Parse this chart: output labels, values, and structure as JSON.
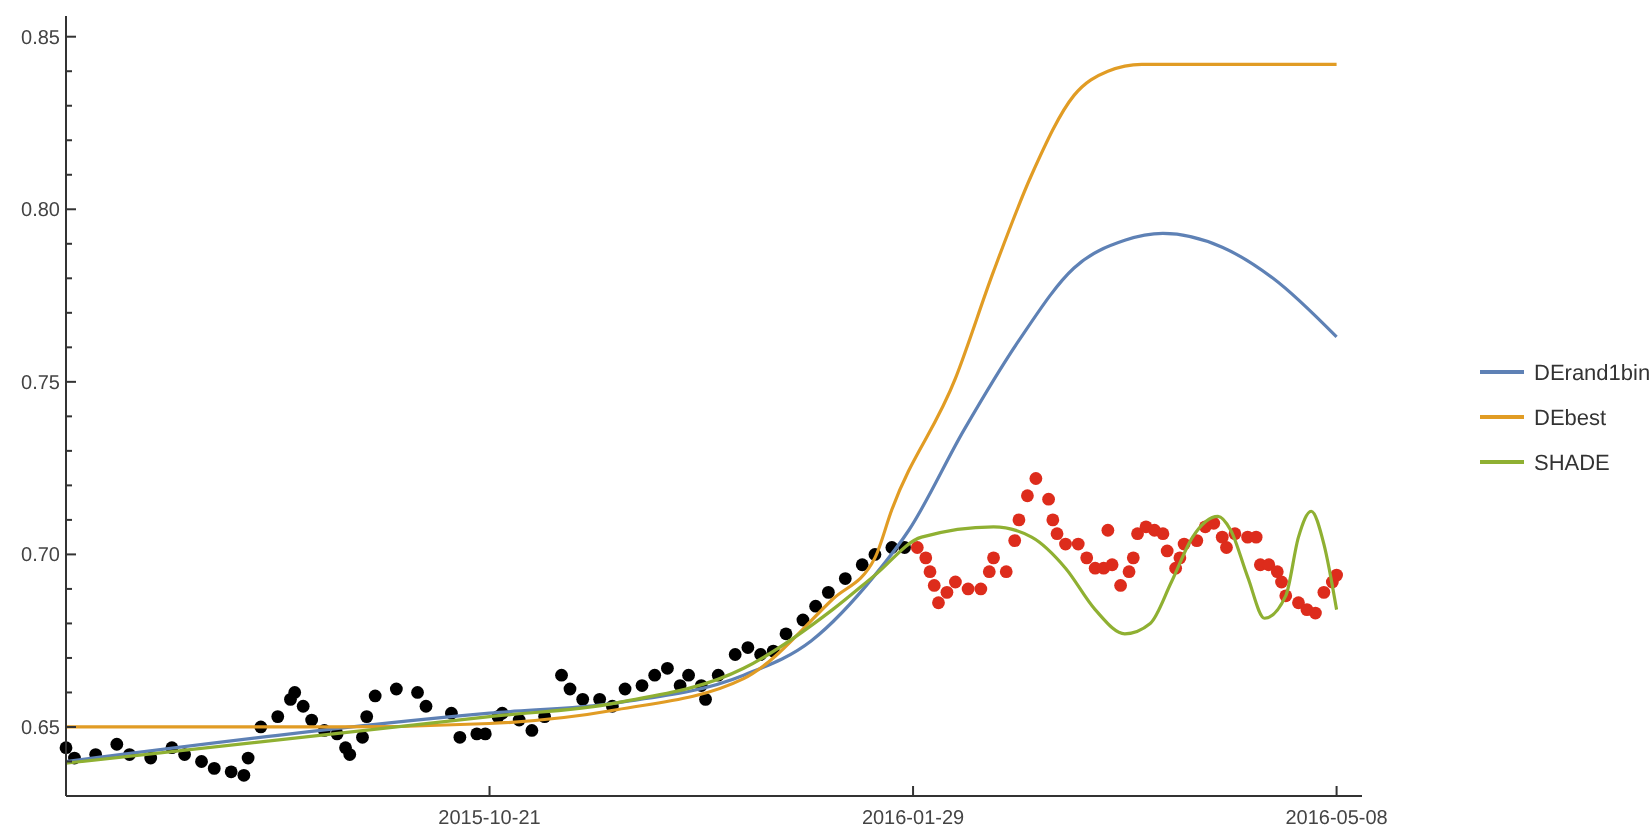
{
  "chart_data": {
    "type": "line",
    "xlim": [
      "2015-07-13",
      "2016-05-14"
    ],
    "xticks": [
      "2015-10-21",
      "2016-01-29",
      "2016-05-08"
    ],
    "ylim": [
      0.63,
      0.856
    ],
    "yticks": [
      {
        "value": 0.64,
        "label": null
      },
      0.65,
      {
        "value": 0.66,
        "label": null
      },
      {
        "value": 0.67,
        "label": null
      },
      {
        "value": 0.68,
        "label": null
      },
      {
        "value": 0.69,
        "label": null
      },
      {
        "value": 0.7,
        "label": "0.70"
      },
      {
        "value": 0.71,
        "label": null
      },
      {
        "value": 0.72,
        "label": null
      },
      {
        "value": 0.73,
        "label": null
      },
      {
        "value": 0.74,
        "label": null
      },
      0.75,
      {
        "value": 0.76,
        "label": null
      },
      {
        "value": 0.77,
        "label": null
      },
      {
        "value": 0.78,
        "label": null
      },
      {
        "value": 0.79,
        "label": null
      },
      {
        "value": 0.8,
        "label": "0.80"
      },
      {
        "value": 0.81,
        "label": null
      },
      {
        "value": 0.82,
        "label": null
      },
      {
        "value": 0.83,
        "label": null
      },
      {
        "value": 0.84,
        "label": null
      },
      0.85
    ],
    "grid": false,
    "legend": "right",
    "line_style": "solid",
    "series": [
      {
        "type": "scatter",
        "marker": "circle",
        "color": "#000000",
        "x": [
          "2015-07-13",
          "2015-07-15",
          "2015-07-20",
          "2015-07-25",
          "2015-07-28",
          "2015-08-02",
          "2015-08-07",
          "2015-08-10",
          "2015-08-14",
          "2015-08-17",
          "2015-08-21",
          "2015-08-24",
          "2015-08-25",
          "2015-08-28",
          "2015-09-01",
          "2015-09-04",
          "2015-09-05",
          "2015-09-07",
          "2015-09-09",
          "2015-09-12",
          "2015-09-15",
          "2015-09-17",
          "2015-09-18",
          "2015-09-21",
          "2015-09-22",
          "2015-09-24",
          "2015-09-29",
          "2015-10-04",
          "2015-10-06",
          "2015-10-12",
          "2015-10-14",
          "2015-10-18",
          "2015-10-20",
          "2015-10-23",
          "2015-10-24",
          "2015-10-28",
          "2015-10-31",
          "2015-11-03",
          "2015-11-07",
          "2015-11-09",
          "2015-11-12",
          "2015-11-16",
          "2015-11-19",
          "2015-11-22",
          "2015-11-26",
          "2015-11-29",
          "2015-12-02",
          "2015-12-05",
          "2015-12-07",
          "2015-12-10",
          "2015-12-11",
          "2015-12-14",
          "2015-12-18",
          "2015-12-21",
          "2015-12-24",
          "2015-12-27",
          "2015-12-30",
          "2016-01-03",
          "2016-01-06",
          "2016-01-09",
          "2016-01-13",
          "2016-01-17",
          "2016-01-20",
          "2016-01-24",
          "2016-01-27"
        ],
        "values": [
          0.644,
          0.641,
          0.642,
          0.645,
          0.642,
          0.641,
          0.644,
          0.642,
          0.64,
          0.638,
          0.637,
          0.636,
          0.641,
          0.65,
          0.653,
          0.658,
          0.66,
          0.656,
          0.652,
          0.649,
          0.648,
          0.644,
          0.642,
          0.647,
          0.653,
          0.659,
          0.661,
          0.66,
          0.656,
          0.654,
          0.647,
          0.648,
          0.648,
          0.653,
          0.654,
          0.652,
          0.649,
          0.653,
          0.665,
          0.661,
          0.658,
          0.658,
          0.656,
          0.661,
          0.662,
          0.665,
          0.667,
          0.662,
          0.665,
          0.662,
          0.658,
          0.665,
          0.671,
          0.673,
          0.671,
          0.672,
          0.677,
          0.681,
          0.685,
          0.689,
          0.693,
          0.697,
          0.7,
          0.702,
          0.702
        ]
      },
      {
        "type": "scatter",
        "marker": "circle",
        "color": "#dd2c1c",
        "x": [
          "2016-01-30",
          "2016-02-01",
          "2016-02-02",
          "2016-02-03",
          "2016-02-04",
          "2016-02-06",
          "2016-02-08",
          "2016-02-11",
          "2016-02-14",
          "2016-02-16",
          "2016-02-17",
          "2016-02-20",
          "2016-02-22",
          "2016-02-23",
          "2016-02-25",
          "2016-02-27",
          "2016-03-01",
          "2016-03-02",
          "2016-03-03",
          "2016-03-05",
          "2016-03-08",
          "2016-03-10",
          "2016-03-12",
          "2016-03-14",
          "2016-03-15",
          "2016-03-16",
          "2016-03-18",
          "2016-03-20",
          "2016-03-21",
          "2016-03-22",
          "2016-03-24",
          "2016-03-26",
          "2016-03-28",
          "2016-03-29",
          "2016-03-31",
          "2016-04-01",
          "2016-04-02",
          "2016-04-05",
          "2016-04-07",
          "2016-04-09",
          "2016-04-11",
          "2016-04-12",
          "2016-04-14",
          "2016-04-17",
          "2016-04-19",
          "2016-04-20",
          "2016-04-22",
          "2016-04-24",
          "2016-04-25",
          "2016-04-26",
          "2016-04-29",
          "2016-05-01",
          "2016-05-03",
          "2016-05-05",
          "2016-05-07",
          "2016-05-08"
        ],
        "values": [
          0.702,
          0.699,
          0.695,
          0.691,
          0.686,
          0.689,
          0.692,
          0.69,
          0.69,
          0.695,
          0.699,
          0.695,
          0.704,
          0.71,
          0.717,
          0.722,
          0.716,
          0.71,
          0.706,
          0.703,
          0.703,
          0.699,
          0.696,
          0.696,
          0.707,
          0.697,
          0.691,
          0.695,
          0.699,
          0.706,
          0.708,
          0.707,
          0.706,
          0.701,
          0.696,
          0.699,
          0.703,
          0.704,
          0.708,
          0.709,
          0.705,
          0.702,
          0.706,
          0.705,
          0.705,
          0.697,
          0.697,
          0.695,
          0.692,
          0.688,
          0.686,
          0.684,
          0.683,
          0.689,
          0.692,
          0.694
        ]
      },
      {
        "name": "DErand1bin",
        "color": "#5e81b5",
        "x": [
          "2015-07-13",
          "2015-10-21",
          "2015-11-20",
          "2015-12-20",
          "2016-01-05",
          "2016-01-20",
          "2016-01-28",
          "2016-02-10",
          "2016-02-23",
          "2016-03-07",
          "2016-03-19",
          "2016-03-28",
          "2016-04-11",
          "2016-04-23",
          "2016-05-08"
        ],
        "values": [
          0.64,
          0.654,
          0.657,
          0.665,
          0.675,
          0.694,
          0.707,
          0.736,
          0.762,
          0.783,
          0.791,
          0.793,
          0.789,
          0.78,
          0.763
        ]
      },
      {
        "name": "DEbest",
        "color": "#e19c24",
        "x": [
          "2015-07-13",
          "2015-09-15",
          "2015-10-21",
          "2015-11-20",
          "2015-12-20",
          "2016-01-10",
          "2016-01-20",
          "2016-01-24",
          "2016-02-08",
          "2016-02-17",
          "2016-02-26",
          "2016-03-07",
          "2016-03-15",
          "2016-03-23",
          "2016-05-08"
        ],
        "values": [
          0.65,
          0.65,
          0.651,
          0.655,
          0.664,
          0.687,
          0.699,
          0.713,
          0.751,
          0.782,
          0.81,
          0.833,
          0.84,
          0.842,
          0.842
        ]
      },
      {
        "name": "SHADE",
        "color": "#8fb032",
        "x": [
          "2015-07-13",
          "2015-10-21",
          "2015-11-20",
          "2015-12-20",
          "2016-01-10",
          "2016-01-20",
          "2016-01-31",
          "2016-02-17",
          "2016-02-26",
          "2016-03-05",
          "2016-03-12",
          "2016-03-19",
          "2016-03-25",
          "2016-03-30",
          "2016-04-04",
          "2016-04-10",
          "2016-04-13",
          "2016-04-17",
          "2016-04-21",
          "2016-04-26",
          "2016-04-29",
          "2016-05-02",
          "2016-05-05",
          "2016-05-08"
        ],
        "values": [
          0.6395,
          0.653,
          0.657,
          0.667,
          0.684,
          0.694,
          0.705,
          0.708,
          0.705,
          0.696,
          0.684,
          0.677,
          0.68,
          0.692,
          0.705,
          0.711,
          0.707,
          0.6935,
          0.6815,
          0.688,
          0.705,
          0.7125,
          0.703,
          0.684
        ]
      }
    ]
  }
}
